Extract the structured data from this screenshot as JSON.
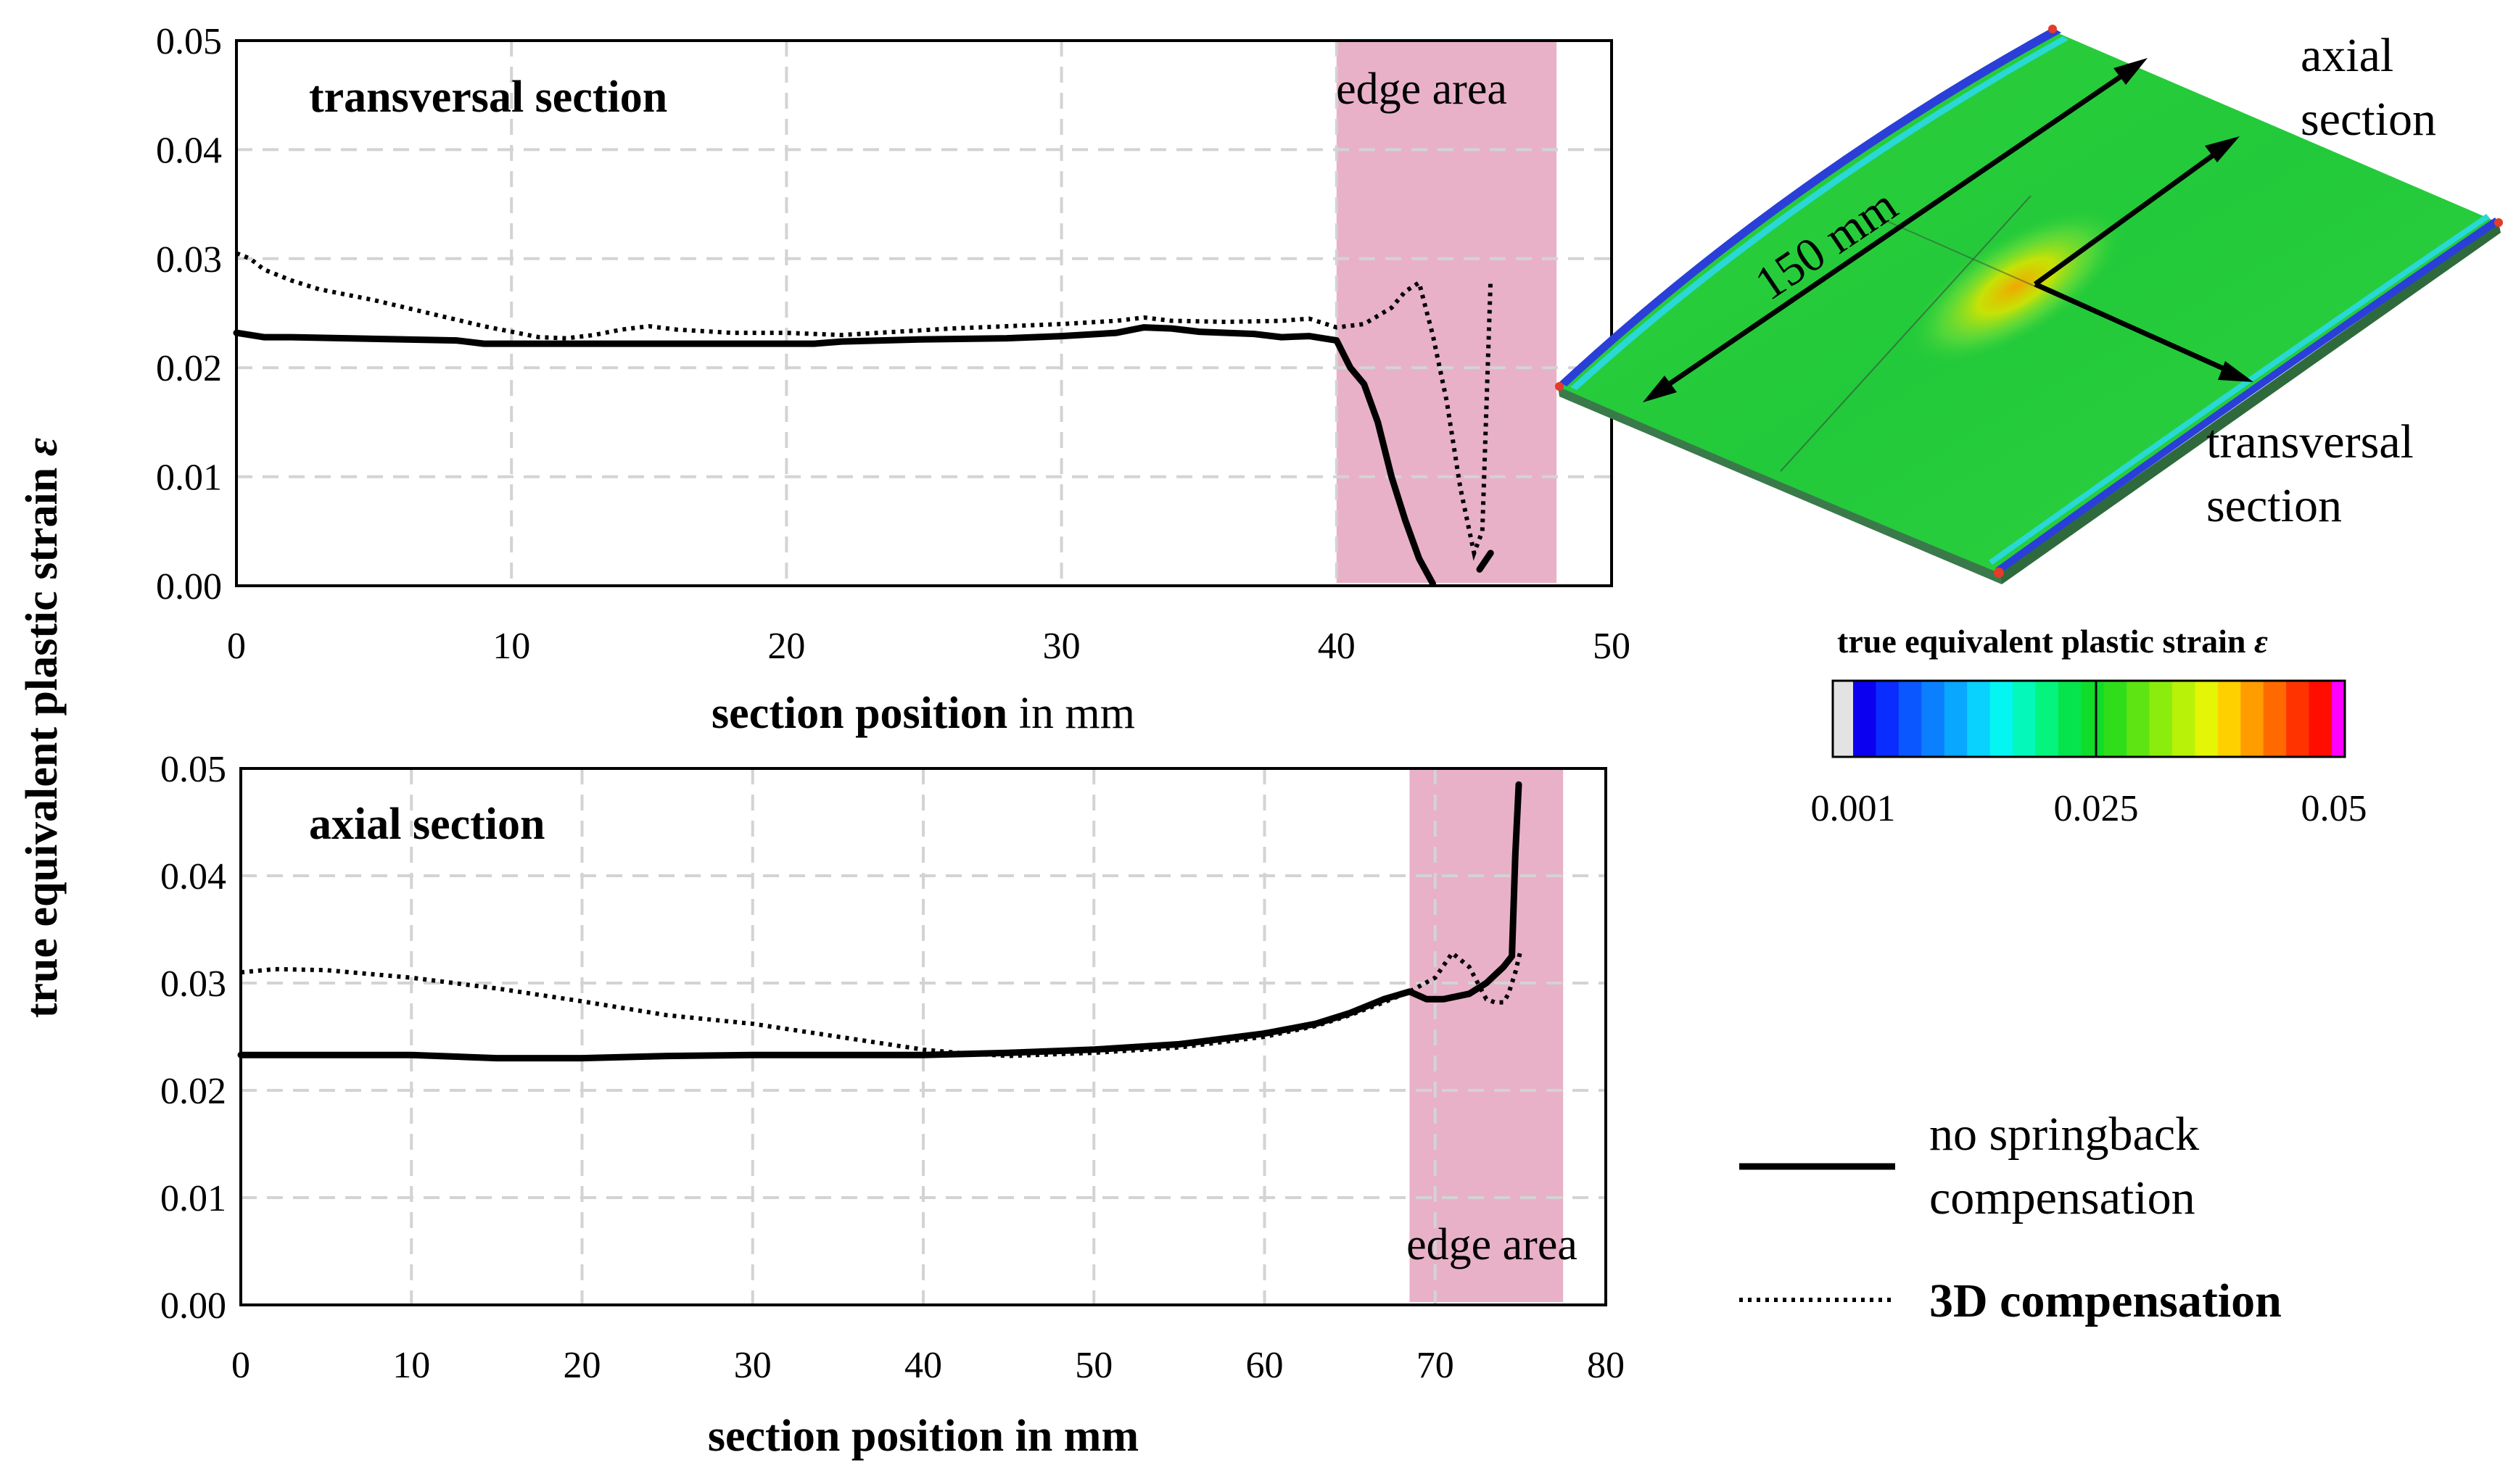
{
  "colors": {
    "edge_area": "#e8b1c7",
    "grid": "#d3d3d3",
    "series_line": "#000000",
    "plate_green": "#2ed13a",
    "plate_edge_blue": "#2a3fd8"
  },
  "figure": {
    "y_axis_title_main": "true equivalent plastic strain ",
    "y_axis_title_symbol": "ε"
  },
  "chart_data": [
    {
      "type": "line",
      "title": "transversal section",
      "xlabel_bold": "section position",
      "xlabel_rest": " in mm",
      "ylabel": "true equivalent plastic strain ε",
      "xlim": [
        0,
        50
      ],
      "ylim": [
        0,
        0.05
      ],
      "x_ticks": [
        0,
        10,
        20,
        30,
        40,
        50
      ],
      "y_ticks": [
        0.0,
        0.01,
        0.02,
        0.03,
        0.04,
        0.05
      ],
      "x_tick_labels": [
        "0",
        "10",
        "20",
        "30",
        "40",
        "50"
      ],
      "y_tick_labels": [
        "0.00",
        "0.01",
        "0.02",
        "0.03",
        "0.04",
        "0.05"
      ],
      "grid": true,
      "edge_area": {
        "label": "edge area",
        "x_start": 40,
        "x_end": 48
      },
      "series": [
        {
          "name": "no springback compensation",
          "style": "solid",
          "x": [
            0,
            0.5,
            1,
            2,
            4,
            6,
            8,
            9,
            12,
            15,
            18,
            21,
            22,
            25,
            28,
            30,
            32,
            33,
            34,
            35,
            37,
            38,
            39,
            40,
            40.5,
            41,
            41.5,
            42,
            42.5,
            43,
            43.5
          ],
          "y": [
            0.0232,
            0.023,
            0.0228,
            0.0228,
            0.0227,
            0.0226,
            0.0225,
            0.0222,
            0.0222,
            0.0222,
            0.0222,
            0.0222,
            0.0224,
            0.0226,
            0.0227,
            0.0229,
            0.0232,
            0.0237,
            0.0236,
            0.0233,
            0.0231,
            0.0228,
            0.0229,
            0.0225,
            0.02,
            0.0185,
            0.015,
            0.01,
            0.006,
            0.0025,
            0.0002
          ]
        },
        {
          "name": "no springback compensation (edge tail)",
          "style": "solid",
          "x": [
            45.2,
            45.6
          ],
          "y": [
            0.0015,
            0.003
          ]
        },
        {
          "name": "3D compensation",
          "style": "dotted",
          "x": [
            0,
            0.5,
            1,
            2,
            3,
            5,
            7,
            9,
            11,
            12,
            13,
            14,
            15,
            16,
            18,
            20,
            22,
            24,
            26,
            28,
            30,
            32,
            33,
            34,
            36,
            38,
            39,
            40,
            41,
            42,
            42.5,
            43,
            43.5,
            44,
            44.5,
            45,
            45.3,
            45.6
          ],
          "y": [
            0.0305,
            0.03,
            0.029,
            0.028,
            0.0272,
            0.0262,
            0.025,
            0.0238,
            0.0228,
            0.0227,
            0.023,
            0.0235,
            0.0238,
            0.0235,
            0.0232,
            0.0232,
            0.023,
            0.0233,
            0.0236,
            0.0238,
            0.024,
            0.0243,
            0.0246,
            0.0243,
            0.0242,
            0.0243,
            0.0245,
            0.0237,
            0.024,
            0.0255,
            0.027,
            0.0278,
            0.023,
            0.017,
            0.009,
            0.003,
            0.005,
            0.028
          ]
        }
      ]
    },
    {
      "type": "line",
      "title": "axial section",
      "xlabel": "section position in mm",
      "ylabel": "true equivalent plastic strain ε",
      "xlim": [
        0,
        80
      ],
      "ylim": [
        0,
        0.05
      ],
      "x_ticks": [
        0,
        10,
        20,
        30,
        40,
        50,
        60,
        70,
        80
      ],
      "y_ticks": [
        0.0,
        0.01,
        0.02,
        0.03,
        0.04,
        0.05
      ],
      "x_tick_labels": [
        "0",
        "10",
        "20",
        "30",
        "40",
        "50",
        "60",
        "70",
        "80"
      ],
      "y_tick_labels": [
        "0.00",
        "0.01",
        "0.02",
        "0.03",
        "0.04",
        "0.05"
      ],
      "grid": true,
      "edge_area": {
        "label": "edge area",
        "x_start": 68.5,
        "x_end": 77.5
      },
      "series": [
        {
          "name": "no springback compensation",
          "style": "solid",
          "x": [
            0,
            5,
            10,
            15,
            20,
            25,
            30,
            35,
            40,
            45,
            50,
            55,
            60,
            63,
            65,
            67,
            68.5,
            69.5,
            70.5,
            72,
            73,
            74,
            74.5,
            74.7,
            74.9
          ],
          "y": [
            0.0233,
            0.0233,
            0.0233,
            0.023,
            0.023,
            0.0232,
            0.0233,
            0.0233,
            0.0233,
            0.0235,
            0.0238,
            0.0243,
            0.0253,
            0.0262,
            0.0272,
            0.0285,
            0.0292,
            0.0285,
            0.0285,
            0.029,
            0.03,
            0.0315,
            0.0325,
            0.042,
            0.0485
          ]
        },
        {
          "name": "3D compensation",
          "style": "dotted",
          "x": [
            0,
            2,
            5,
            10,
            15,
            20,
            25,
            30,
            35,
            40,
            42,
            45,
            50,
            55,
            60,
            63,
            65,
            67,
            68.5,
            70,
            71,
            72,
            73,
            73.5,
            74,
            74.3,
            74.7,
            75
          ],
          "y": [
            0.031,
            0.0313,
            0.0312,
            0.0305,
            0.0295,
            0.0283,
            0.027,
            0.0262,
            0.025,
            0.0238,
            0.0235,
            0.0232,
            0.0235,
            0.024,
            0.025,
            0.026,
            0.027,
            0.0282,
            0.0292,
            0.0305,
            0.0328,
            0.0315,
            0.0285,
            0.0282,
            0.0282,
            0.029,
            0.031,
            0.033
          ]
        }
      ]
    },
    {
      "type": "heatmap",
      "title": "true equivalent plastic strain ε",
      "colorbar_ticks": [
        "0.001",
        "0.025",
        "0.05"
      ],
      "colorbar_values": [
        0.001,
        0.025,
        0.05
      ],
      "colorbar_colors": [
        "#e3e3e3",
        "#0b00f0",
        "#0a2cff",
        "#0b57ff",
        "#0b80ff",
        "#0aa7ff",
        "#09d2ff",
        "#05f5f3",
        "#04f8b9",
        "#05f47e",
        "#06e44d",
        "#10dd2a",
        "#30dd1a",
        "#5ee412",
        "#8bed0d",
        "#b8f208",
        "#e4f505",
        "#ffd000",
        "#ff9c00",
        "#ff6a00",
        "#ff3300",
        "#ff0d00",
        "#ff00ff"
      ],
      "annotations": [
        "150 mm",
        "axial",
        "section",
        "transversal",
        "section"
      ]
    }
  ],
  "legend": {
    "solid_line_1": "no springback",
    "solid_line_2": "compensation",
    "dotted": "3D compensation"
  }
}
